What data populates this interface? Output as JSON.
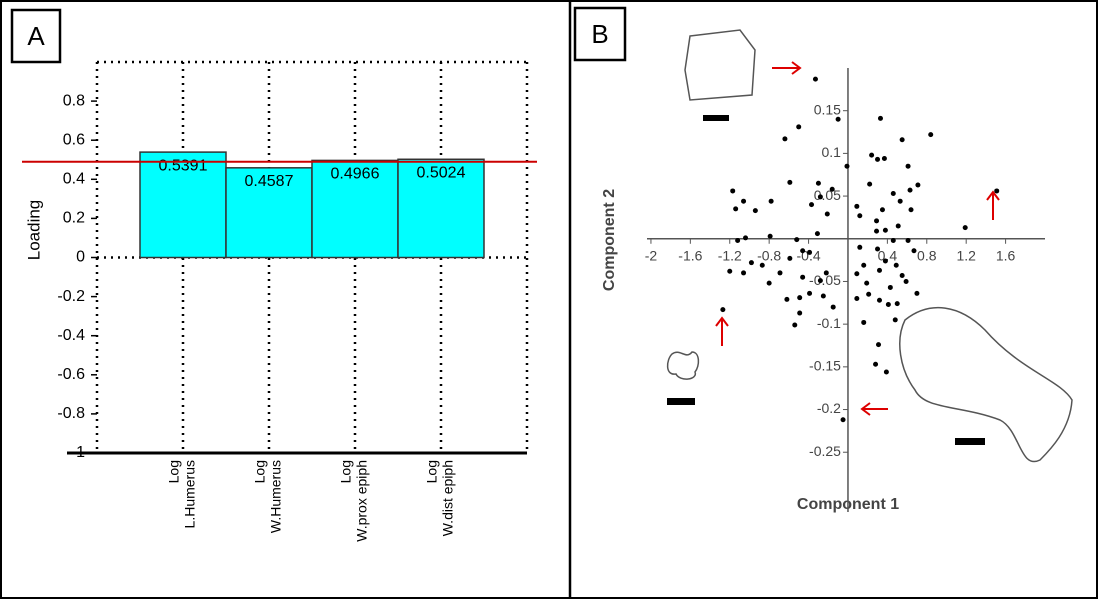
{
  "chart_data": [
    {
      "type": "bar",
      "panel_label": "A",
      "y_label": "Loading",
      "categories": [
        [
          "Log",
          "L.Humerus"
        ],
        [
          "Log",
          "W.Humerus"
        ],
        [
          "Log",
          "W.prox epiph"
        ],
        [
          "Log",
          "W.dist epiph"
        ]
      ],
      "values": [
        0.5391,
        0.4587,
        0.4966,
        0.5024
      ],
      "color": "#00ffff",
      "reference_line": {
        "value": 0.49,
        "color": "#cc0000"
      },
      "ylim": [
        -1,
        1
      ],
      "yticks": [
        -1,
        -0.8,
        -0.6,
        -0.4,
        -0.2,
        0,
        0.2,
        0.4,
        0.6,
        0.8
      ]
    },
    {
      "type": "scatter",
      "panel_label": "B",
      "x_label": "Component 1",
      "y_label": "Component 2",
      "color": "#000000",
      "x": [
        -0.33,
        -1.27,
        1.51,
        -0.05,
        0.33,
        -0.5,
        -0.64,
        -0.1,
        0.84,
        0.55,
        0.24,
        0.3,
        0.37,
        -0.01,
        0.61,
        0.71,
        0.63,
        0.46,
        0.22,
        -0.3,
        -0.16,
        -0.28,
        -0.37,
        -0.21,
        -0.59,
        -0.78,
        -1.17,
        -1.06,
        -0.94,
        -1.14,
        0.09,
        0.12,
        0.35,
        0.64,
        0.53,
        0.29,
        0.29,
        0.38,
        0.51,
        1.19,
        -1.04,
        -1.12,
        -0.79,
        -0.52,
        -0.31,
        -0.46,
        -0.39,
        -0.59,
        -0.87,
        -0.98,
        -1.06,
        -1.2,
        -0.8,
        -0.69,
        -0.46,
        -0.28,
        -0.22,
        0.12,
        0.3,
        0.46,
        0.61,
        0.67,
        0.38,
        0.32,
        0.49,
        0.55,
        0.09,
        0.16,
        0.19,
        0.43,
        0.59,
        0.21,
        0.09,
        0.32,
        0.41,
        0.5,
        0.7,
        -0.49,
        -0.39,
        -0.62,
        -0.25,
        -0.15,
        -0.49,
        -0.54,
        0.16,
        0.48,
        0.31,
        0.39,
        0.28
      ],
      "values": [
        0.187,
        -0.083,
        0.056,
        -0.212,
        0.141,
        0.131,
        0.117,
        0.14,
        0.122,
        0.116,
        0.098,
        0.093,
        0.094,
        0.085,
        0.085,
        0.063,
        0.057,
        0.053,
        0.064,
        0.065,
        0.058,
        0.049,
        0.04,
        0.029,
        0.066,
        0.044,
        0.056,
        0.044,
        0.033,
        0.035,
        0.038,
        0.027,
        0.034,
        0.034,
        0.044,
        0.021,
        0.009,
        0.01,
        0.015,
        0.013,
        0.001,
        -0.002,
        0.003,
        -0.001,
        0.006,
        -0.014,
        -0.016,
        -0.023,
        -0.031,
        -0.028,
        -0.04,
        -0.038,
        -0.052,
        -0.04,
        -0.045,
        -0.049,
        -0.04,
        -0.01,
        -0.012,
        -0.002,
        -0.002,
        -0.014,
        -0.026,
        -0.037,
        -0.031,
        -0.043,
        -0.041,
        -0.031,
        -0.052,
        -0.057,
        -0.05,
        -0.065,
        -0.07,
        -0.072,
        -0.077,
        -0.076,
        -0.064,
        -0.069,
        -0.064,
        -0.071,
        -0.067,
        -0.08,
        -0.087,
        -0.101,
        -0.098,
        -0.095,
        -0.124,
        -0.156,
        -0.147
      ],
      "xlim": [
        -2.04,
        2.0
      ],
      "xticks": [
        -2,
        -1.6,
        -1.2,
        -0.8,
        -0.4,
        0.4,
        0.8,
        1.2,
        1.6
      ],
      "ylim": [
        -0.32,
        0.2
      ],
      "yticks": [
        -0.25,
        -0.2,
        -0.15,
        -0.1,
        -0.05,
        0.05,
        0.1,
        0.15
      ]
    }
  ]
}
